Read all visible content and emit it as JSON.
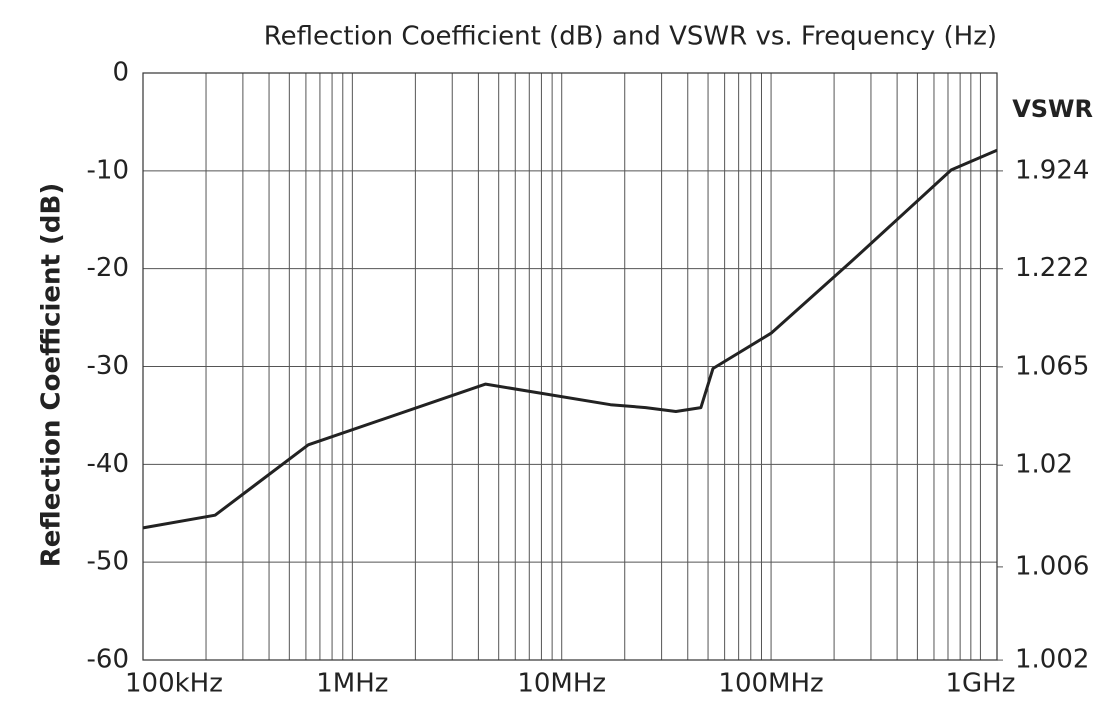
{
  "chart_data": {
    "type": "line",
    "title": "Reflection Coefficient (dB) and VSWR vs. Frequency (Hz)",
    "y_label": "Reflection Coefficient (dB)",
    "y2_label": "VSWR",
    "x": [
      100000,
      221000,
      616000,
      4330000,
      17100000,
      25200000,
      35100000,
      46200000,
      52800000,
      100000000,
      241000000,
      726000000,
      1200000000
    ],
    "series": [
      {
        "name": "Reflection Coefficient",
        "color": "#222222",
        "values": [
          -46.5,
          -45.2,
          -38.0,
          -31.8,
          -33.9,
          -34.2,
          -34.6,
          -34.2,
          -30.2,
          -26.6,
          -19.3,
          -9.9,
          -7.9
        ]
      }
    ],
    "xlim": [
      100000,
      1200000000
    ],
    "xscale": "log",
    "xticks": [
      {
        "value": 100000,
        "label": "100kHz"
      },
      {
        "value": 1000000,
        "label": "1MHz"
      },
      {
        "value": 10000000,
        "label": "10MHz"
      },
      {
        "value": 100000000,
        "label": "100MHz"
      },
      {
        "value": 1000000000,
        "label": "1GHz"
      }
    ],
    "xminor_ticks": [
      200000,
      300000,
      400000,
      500000,
      600000,
      700000,
      800000,
      900000,
      2000000,
      3000000,
      4000000,
      5000000,
      6000000,
      7000000,
      8000000,
      9000000,
      20000000,
      30000000,
      40000000,
      50000000,
      60000000,
      70000000,
      80000000,
      90000000,
      200000000,
      300000000,
      400000000,
      500000000,
      600000000,
      700000000,
      800000000,
      900000000
    ],
    "ylim": [
      -60,
      0
    ],
    "yticks": [
      -60,
      -50,
      -40,
      -30,
      -20,
      -10,
      0
    ],
    "y2ticks": [
      1.002,
      1.006,
      1.02,
      1.065,
      1.222,
      1.924
    ],
    "grid": true
  }
}
